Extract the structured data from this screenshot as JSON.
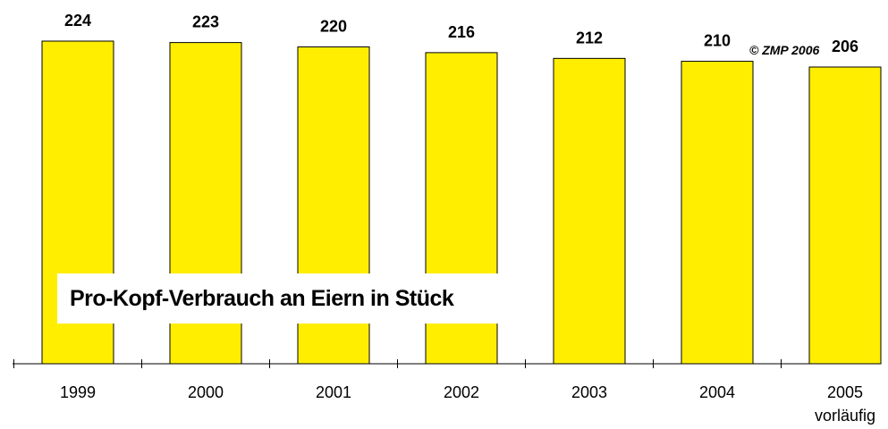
{
  "copyright": "© ZMP 2006",
  "colors": {
    "bar_fill": "#ffee00",
    "bar_stroke": "#000000",
    "axis": "#000000"
  },
  "chart_data": {
    "type": "bar",
    "title": "Pro-Kopf-Verbrauch an Eiern in Stück",
    "xlabel": "",
    "ylabel": "",
    "ylim": [
      0,
      224
    ],
    "grid": false,
    "legend": "none",
    "categories": [
      "1999",
      "2000",
      "2001",
      "2002",
      "2003",
      "2004",
      "2005"
    ],
    "category_notes": [
      "",
      "",
      "",
      "",
      "",
      "",
      "vorläufig"
    ],
    "values": [
      224,
      223,
      220,
      216,
      212,
      210,
      206
    ],
    "data_labels": [
      "224",
      "223",
      "220",
      "216",
      "212",
      "210",
      "206"
    ]
  }
}
